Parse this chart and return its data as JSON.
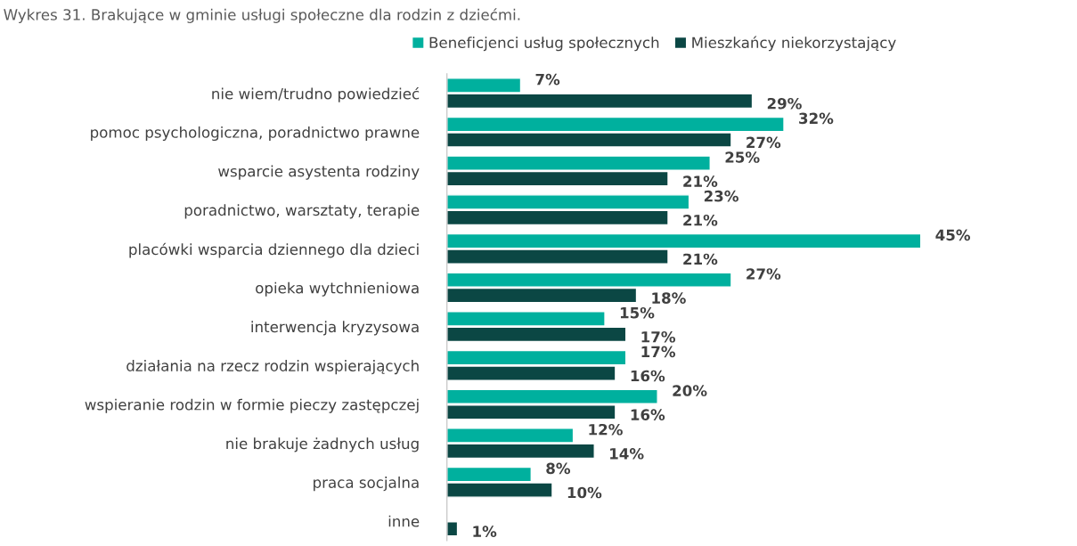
{
  "chart_data": {
    "type": "bar",
    "orientation": "horizontal",
    "title": "Wykres 31. Brakujące w gminie usługi społeczne dla rodzin z dziećmi.",
    "categories": [
      "nie wiem/trudno powiedzieć",
      "pomoc psychologiczna, poradnictwo prawne",
      "wsparcie asystenta rodziny",
      "poradnictwo, warsztaty, terapie",
      "placówki wsparcia dziennego dla dzieci",
      "opieka wytchnieniowa",
      "interwencja kryzysowa",
      "działania na rzecz rodzin wspierających",
      "wspieranie rodzin w formie pieczy zastępczej",
      "nie brakuje żadnych usług",
      "praca socjalna",
      "inne"
    ],
    "series": [
      {
        "name": "Beneficjenci usług społecznych",
        "color": "#00b09e",
        "values": [
          7,
          32,
          25,
          23,
          45,
          27,
          15,
          17,
          20,
          12,
          8,
          null
        ],
        "value_labels": [
          "7%",
          "32%",
          "25%",
          "23%",
          "45%",
          "27%",
          "15%",
          "17%",
          "20%",
          "12%",
          "8%",
          null
        ]
      },
      {
        "name": "Mieszkańcy niekorzystający",
        "color": "#0b4744",
        "values": [
          29,
          27,
          21,
          21,
          21,
          18,
          17,
          16,
          16,
          14,
          10,
          1
        ],
        "value_labels": [
          "29%",
          "27%",
          "21%",
          "21%",
          "21%",
          "18%",
          "17%",
          "16%",
          "16%",
          "14%",
          "10%",
          "1%"
        ]
      }
    ],
    "legend": "top",
    "grid": false
  }
}
